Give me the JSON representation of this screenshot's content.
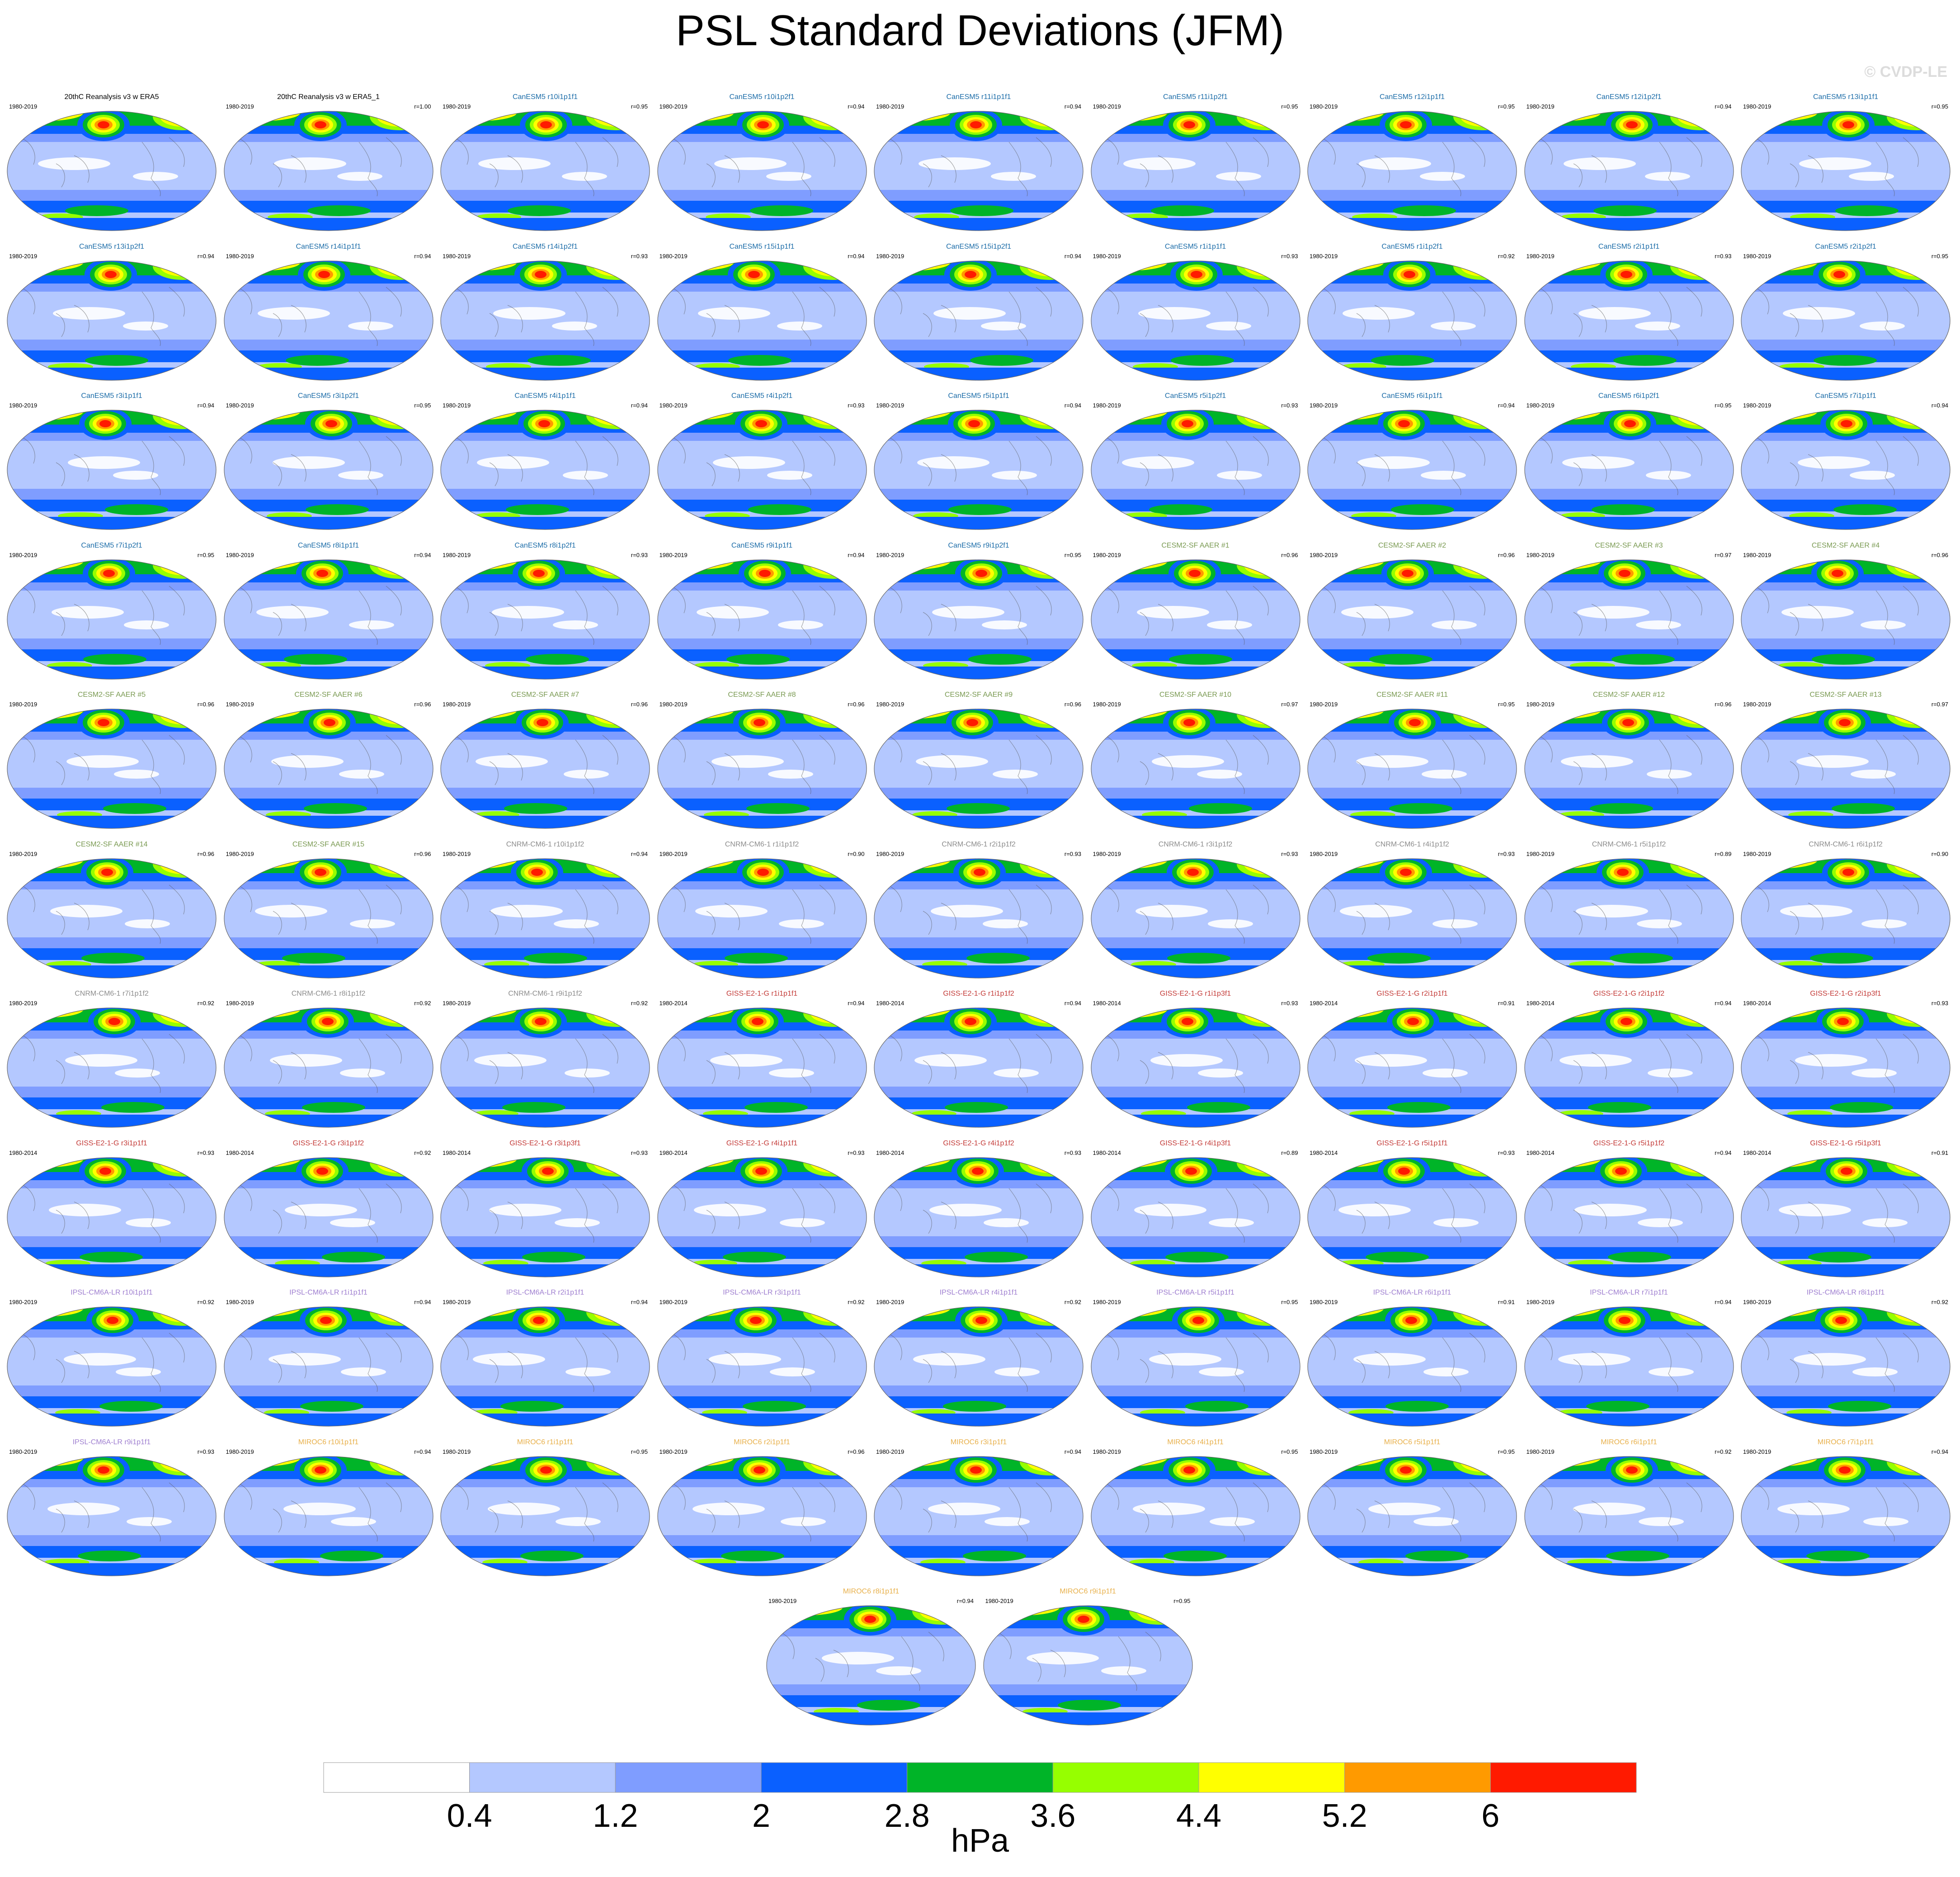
{
  "title": "PSL Standard Deviations (JFM)",
  "copyright": "© CVDP-LE",
  "units": "hPa",
  "panels": [
    {
      "title": "20thC Reanalysis v3 w ERA5",
      "years": "1980-2019",
      "r": "",
      "group": "obs"
    },
    {
      "title": "20thC Reanalysis v3 w ERA5_1",
      "years": "1980-2019",
      "r": "r=1.00",
      "group": "obs"
    },
    {
      "title": "CanESM5 r10i1p1f1",
      "years": "1980-2019",
      "r": "r=0.95",
      "group": "CanESM5"
    },
    {
      "title": "CanESM5 r10i1p2f1",
      "years": "1980-2019",
      "r": "r=0.94",
      "group": "CanESM5"
    },
    {
      "title": "CanESM5 r11i1p1f1",
      "years": "1980-2019",
      "r": "r=0.94",
      "group": "CanESM5"
    },
    {
      "title": "CanESM5 r11i1p2f1",
      "years": "1980-2019",
      "r": "r=0.95",
      "group": "CanESM5"
    },
    {
      "title": "CanESM5 r12i1p1f1",
      "years": "1980-2019",
      "r": "r=0.95",
      "group": "CanESM5"
    },
    {
      "title": "CanESM5 r12i1p2f1",
      "years": "1980-2019",
      "r": "r=0.94",
      "group": "CanESM5"
    },
    {
      "title": "CanESM5 r13i1p1f1",
      "years": "1980-2019",
      "r": "r=0.95",
      "group": "CanESM5"
    },
    {
      "title": "CanESM5 r13i1p2f1",
      "years": "1980-2019",
      "r": "r=0.94",
      "group": "CanESM5"
    },
    {
      "title": "CanESM5 r14i1p1f1",
      "years": "1980-2019",
      "r": "r=0.94",
      "group": "CanESM5"
    },
    {
      "title": "CanESM5 r14i1p2f1",
      "years": "1980-2019",
      "r": "r=0.93",
      "group": "CanESM5"
    },
    {
      "title": "CanESM5 r15i1p1f1",
      "years": "1980-2019",
      "r": "r=0.94",
      "group": "CanESM5"
    },
    {
      "title": "CanESM5 r15i1p2f1",
      "years": "1980-2019",
      "r": "r=0.94",
      "group": "CanESM5"
    },
    {
      "title": "CanESM5 r1i1p1f1",
      "years": "1980-2019",
      "r": "r=0.93",
      "group": "CanESM5"
    },
    {
      "title": "CanESM5 r1i1p2f1",
      "years": "1980-2019",
      "r": "r=0.92",
      "group": "CanESM5"
    },
    {
      "title": "CanESM5 r2i1p1f1",
      "years": "1980-2019",
      "r": "r=0.93",
      "group": "CanESM5"
    },
    {
      "title": "CanESM5 r2i1p2f1",
      "years": "1980-2019",
      "r": "r=0.95",
      "group": "CanESM5"
    },
    {
      "title": "CanESM5 r3i1p1f1",
      "years": "1980-2019",
      "r": "r=0.94",
      "group": "CanESM5"
    },
    {
      "title": "CanESM5 r3i1p2f1",
      "years": "1980-2019",
      "r": "r=0.95",
      "group": "CanESM5"
    },
    {
      "title": "CanESM5 r4i1p1f1",
      "years": "1980-2019",
      "r": "r=0.94",
      "group": "CanESM5"
    },
    {
      "title": "CanESM5 r4i1p2f1",
      "years": "1980-2019",
      "r": "r=0.93",
      "group": "CanESM5"
    },
    {
      "title": "CanESM5 r5i1p1f1",
      "years": "1980-2019",
      "r": "r=0.94",
      "group": "CanESM5"
    },
    {
      "title": "CanESM5 r5i1p2f1",
      "years": "1980-2019",
      "r": "r=0.93",
      "group": "CanESM5"
    },
    {
      "title": "CanESM5 r6i1p1f1",
      "years": "1980-2019",
      "r": "r=0.94",
      "group": "CanESM5"
    },
    {
      "title": "CanESM5 r6i1p2f1",
      "years": "1980-2019",
      "r": "r=0.95",
      "group": "CanESM5"
    },
    {
      "title": "CanESM5 r7i1p1f1",
      "years": "1980-2019",
      "r": "r=0.94",
      "group": "CanESM5"
    },
    {
      "title": "CanESM5 r7i1p2f1",
      "years": "1980-2019",
      "r": "r=0.95",
      "group": "CanESM5"
    },
    {
      "title": "CanESM5 r8i1p1f1",
      "years": "1980-2019",
      "r": "r=0.94",
      "group": "CanESM5"
    },
    {
      "title": "CanESM5 r8i1p2f1",
      "years": "1980-2019",
      "r": "r=0.93",
      "group": "CanESM5"
    },
    {
      "title": "CanESM5 r9i1p1f1",
      "years": "1980-2019",
      "r": "r=0.94",
      "group": "CanESM5"
    },
    {
      "title": "CanESM5 r9i1p2f1",
      "years": "1980-2019",
      "r": "r=0.95",
      "group": "CanESM5"
    },
    {
      "title": "CESM2-SF AAER #1",
      "years": "1980-2019",
      "r": "r=0.96",
      "group": "CESM2"
    },
    {
      "title": "CESM2-SF AAER #2",
      "years": "1980-2019",
      "r": "r=0.96",
      "group": "CESM2"
    },
    {
      "title": "CESM2-SF AAER #3",
      "years": "1980-2019",
      "r": "r=0.97",
      "group": "CESM2"
    },
    {
      "title": "CESM2-SF AAER #4",
      "years": "1980-2019",
      "r": "r=0.96",
      "group": "CESM2"
    },
    {
      "title": "CESM2-SF AAER #5",
      "years": "1980-2019",
      "r": "r=0.96",
      "group": "CESM2"
    },
    {
      "title": "CESM2-SF AAER #6",
      "years": "1980-2019",
      "r": "r=0.96",
      "group": "CESM2"
    },
    {
      "title": "CESM2-SF AAER #7",
      "years": "1980-2019",
      "r": "r=0.96",
      "group": "CESM2"
    },
    {
      "title": "CESM2-SF AAER #8",
      "years": "1980-2019",
      "r": "r=0.96",
      "group": "CESM2"
    },
    {
      "title": "CESM2-SF AAER #9",
      "years": "1980-2019",
      "r": "r=0.96",
      "group": "CESM2"
    },
    {
      "title": "CESM2-SF AAER #10",
      "years": "1980-2019",
      "r": "r=0.97",
      "group": "CESM2"
    },
    {
      "title": "CESM2-SF AAER #11",
      "years": "1980-2019",
      "r": "r=0.95",
      "group": "CESM2"
    },
    {
      "title": "CESM2-SF AAER #12",
      "years": "1980-2019",
      "r": "r=0.96",
      "group": "CESM2"
    },
    {
      "title": "CESM2-SF AAER #13",
      "years": "1980-2019",
      "r": "r=0.97",
      "group": "CESM2"
    },
    {
      "title": "CESM2-SF AAER #14",
      "years": "1980-2019",
      "r": "r=0.96",
      "group": "CESM2"
    },
    {
      "title": "CESM2-SF AAER #15",
      "years": "1980-2019",
      "r": "r=0.96",
      "group": "CESM2"
    },
    {
      "title": "CNRM-CM6-1 r10i1p1f2",
      "years": "1980-2019",
      "r": "r=0.94",
      "group": "CNRM"
    },
    {
      "title": "CNRM-CM6-1 r1i1p1f2",
      "years": "1980-2019",
      "r": "r=0.90",
      "group": "CNRM"
    },
    {
      "title": "CNRM-CM6-1 r2i1p1f2",
      "years": "1980-2019",
      "r": "r=0.93",
      "group": "CNRM"
    },
    {
      "title": "CNRM-CM6-1 r3i1p1f2",
      "years": "1980-2019",
      "r": "r=0.93",
      "group": "CNRM"
    },
    {
      "title": "CNRM-CM6-1 r4i1p1f2",
      "years": "1980-2019",
      "r": "r=0.93",
      "group": "CNRM"
    },
    {
      "title": "CNRM-CM6-1 r5i1p1f2",
      "years": "1980-2019",
      "r": "r=0.89",
      "group": "CNRM"
    },
    {
      "title": "CNRM-CM6-1 r6i1p1f2",
      "years": "1980-2019",
      "r": "r=0.90",
      "group": "CNRM"
    },
    {
      "title": "CNRM-CM6-1 r7i1p1f2",
      "years": "1980-2019",
      "r": "r=0.92",
      "group": "CNRM"
    },
    {
      "title": "CNRM-CM6-1 r8i1p1f2",
      "years": "1980-2019",
      "r": "r=0.92",
      "group": "CNRM"
    },
    {
      "title": "CNRM-CM6-1 r9i1p1f2",
      "years": "1980-2019",
      "r": "r=0.92",
      "group": "CNRM"
    },
    {
      "title": "GISS-E2-1-G r1i1p1f1",
      "years": "1980-2014",
      "r": "r=0.94",
      "group": "GISS"
    },
    {
      "title": "GISS-E2-1-G r1i1p1f2",
      "years": "1980-2014",
      "r": "r=0.94",
      "group": "GISS"
    },
    {
      "title": "GISS-E2-1-G r1i1p3f1",
      "years": "1980-2014",
      "r": "r=0.93",
      "group": "GISS"
    },
    {
      "title": "GISS-E2-1-G r2i1p1f1",
      "years": "1980-2014",
      "r": "r=0.91",
      "group": "GISS"
    },
    {
      "title": "GISS-E2-1-G r2i1p1f2",
      "years": "1980-2014",
      "r": "r=0.94",
      "group": "GISS"
    },
    {
      "title": "GISS-E2-1-G r2i1p3f1",
      "years": "1980-2014",
      "r": "r=0.93",
      "group": "GISS"
    },
    {
      "title": "GISS-E2-1-G r3i1p1f1",
      "years": "1980-2014",
      "r": "r=0.93",
      "group": "GISS"
    },
    {
      "title": "GISS-E2-1-G r3i1p1f2",
      "years": "1980-2014",
      "r": "r=0.92",
      "group": "GISS"
    },
    {
      "title": "GISS-E2-1-G r3i1p3f1",
      "years": "1980-2014",
      "r": "r=0.93",
      "group": "GISS"
    },
    {
      "title": "GISS-E2-1-G r4i1p1f1",
      "years": "1980-2014",
      "r": "r=0.93",
      "group": "GISS"
    },
    {
      "title": "GISS-E2-1-G r4i1p1f2",
      "years": "1980-2014",
      "r": "r=0.93",
      "group": "GISS"
    },
    {
      "title": "GISS-E2-1-G r4i1p3f1",
      "years": "1980-2014",
      "r": "r=0.89",
      "group": "GISS"
    },
    {
      "title": "GISS-E2-1-G r5i1p1f1",
      "years": "1980-2014",
      "r": "r=0.93",
      "group": "GISS"
    },
    {
      "title": "GISS-E2-1-G r5i1p1f2",
      "years": "1980-2014",
      "r": "r=0.94",
      "group": "GISS"
    },
    {
      "title": "GISS-E2-1-G r5i1p3f1",
      "years": "1980-2014",
      "r": "r=0.91",
      "group": "GISS"
    },
    {
      "title": "IPSL-CM6A-LR r10i1p1f1",
      "years": "1980-2019",
      "r": "r=0.92",
      "group": "IPSL"
    },
    {
      "title": "IPSL-CM6A-LR r1i1p1f1",
      "years": "1980-2019",
      "r": "r=0.94",
      "group": "IPSL"
    },
    {
      "title": "IPSL-CM6A-LR r2i1p1f1",
      "years": "1980-2019",
      "r": "r=0.94",
      "group": "IPSL"
    },
    {
      "title": "IPSL-CM6A-LR r3i1p1f1",
      "years": "1980-2019",
      "r": "r=0.92",
      "group": "IPSL"
    },
    {
      "title": "IPSL-CM6A-LR r4i1p1f1",
      "years": "1980-2019",
      "r": "r=0.92",
      "group": "IPSL"
    },
    {
      "title": "IPSL-CM6A-LR r5i1p1f1",
      "years": "1980-2019",
      "r": "r=0.95",
      "group": "IPSL"
    },
    {
      "title": "IPSL-CM6A-LR r6i1p1f1",
      "years": "1980-2019",
      "r": "r=0.91",
      "group": "IPSL"
    },
    {
      "title": "IPSL-CM6A-LR r7i1p1f1",
      "years": "1980-2019",
      "r": "r=0.94",
      "group": "IPSL"
    },
    {
      "title": "IPSL-CM6A-LR r8i1p1f1",
      "years": "1980-2019",
      "r": "r=0.92",
      "group": "IPSL"
    },
    {
      "title": "IPSL-CM6A-LR r9i1p1f1",
      "years": "1980-2019",
      "r": "r=0.93",
      "group": "IPSL"
    },
    {
      "title": "MIROC6 r10i1p1f1",
      "years": "1980-2019",
      "r": "r=0.94",
      "group": "MIROC6"
    },
    {
      "title": "MIROC6 r1i1p1f1",
      "years": "1980-2019",
      "r": "r=0.95",
      "group": "MIROC6"
    },
    {
      "title": "MIROC6 r2i1p1f1",
      "years": "1980-2019",
      "r": "r=0.96",
      "group": "MIROC6"
    },
    {
      "title": "MIROC6 r3i1p1f1",
      "years": "1980-2019",
      "r": "r=0.94",
      "group": "MIROC6"
    },
    {
      "title": "MIROC6 r4i1p1f1",
      "years": "1980-2019",
      "r": "r=0.95",
      "group": "MIROC6"
    },
    {
      "title": "MIROC6 r5i1p1f1",
      "years": "1980-2019",
      "r": "r=0.95",
      "group": "MIROC6"
    },
    {
      "title": "MIROC6 r6i1p1f1",
      "years": "1980-2019",
      "r": "r=0.92",
      "group": "MIROC6"
    },
    {
      "title": "MIROC6 r7i1p1f1",
      "years": "1980-2019",
      "r": "r=0.94",
      "group": "MIROC6"
    },
    {
      "title": "MIROC6 r8i1p1f1",
      "years": "1980-2019",
      "r": "r=0.94",
      "group": "MIROC6"
    },
    {
      "title": "MIROC6 r9i1p1f1",
      "years": "1980-2019",
      "r": "r=0.95",
      "group": "MIROC6"
    }
  ],
  "group_colors": {
    "obs": "#000000",
    "CanESM5": "#1b6ca8",
    "CESM2": "#7a9a52",
    "CNRM": "#8c8c8c",
    "GISS": "#c43c39",
    "IPSL": "#9f7fd0",
    "MIROC6": "#e8b04a"
  },
  "chart_data": {
    "type": "heatmap",
    "title": "PSL Standard Deviations (JFM)",
    "units": "hPa",
    "levels": [
      0.4,
      1.2,
      2,
      2.8,
      3.6,
      4.4,
      5.2,
      6
    ],
    "level_labels": [
      "0.4",
      "1.2",
      "2",
      "2.8",
      "3.6",
      "4.4",
      "5.2",
      "6"
    ],
    "colors": [
      "#ffffff",
      "#b4c8ff",
      "#7f9dff",
      "#0a60ff",
      "#00b428",
      "#96ff00",
      "#ffff00",
      "#ff9a00",
      "#ff1a00"
    ]
  }
}
